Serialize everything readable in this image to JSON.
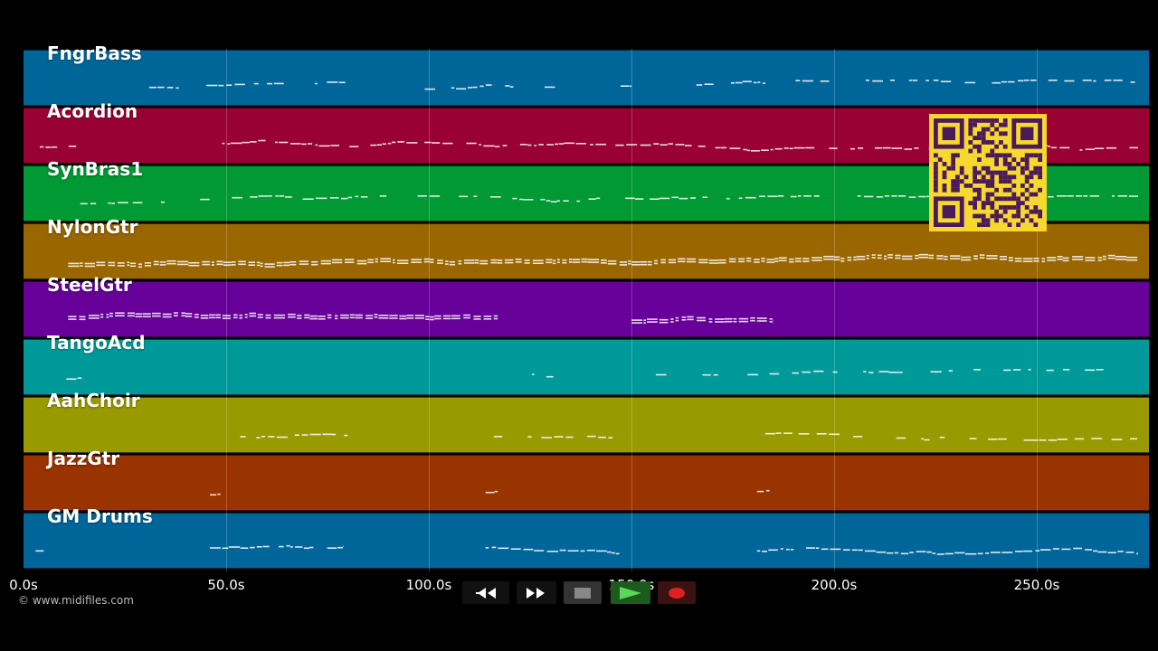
{
  "tracks": [
    {
      "name": "FngrBass",
      "color": "#006699"
    },
    {
      "name": "Acordion",
      "color": "#990033"
    },
    {
      "name": "SynBras1",
      "color": "#009933"
    },
    {
      "name": "NylonGtr",
      "color": "#996600"
    },
    {
      "name": "SteelGtr",
      "color": "#660099"
    },
    {
      "name": "TangoAcd",
      "color": "#009999"
    },
    {
      "name": "AahChoir",
      "color": "#999900"
    },
    {
      "name": "JazzGtr",
      "color": "#993300"
    },
    {
      "name": "GM Drums",
      "color": "#006699"
    }
  ],
  "timeline": {
    "ticks": [
      "0.0s",
      "50.0s",
      "100.0s",
      "150.0s",
      "200.0s",
      "250.0s"
    ],
    "tick_values": [
      0,
      50,
      100,
      150,
      200,
      250
    ],
    "max_seconds": 277.5
  },
  "copyright": "© www.midifiles.com",
  "transport": {
    "buttons": [
      {
        "name": "rewind-button",
        "icon": "rewind-icon"
      },
      {
        "name": "fast-forward-button",
        "icon": "fast-forward-icon"
      },
      {
        "name": "stop-button",
        "icon": "stop-icon"
      },
      {
        "name": "play-button",
        "icon": "play-icon"
      },
      {
        "name": "record-button",
        "icon": "record-icon"
      }
    ]
  },
  "qr_code": {
    "icon": "qr-code-icon",
    "colors": {
      "fg": "#4a1a5a",
      "bg": "#f7d82e"
    }
  }
}
